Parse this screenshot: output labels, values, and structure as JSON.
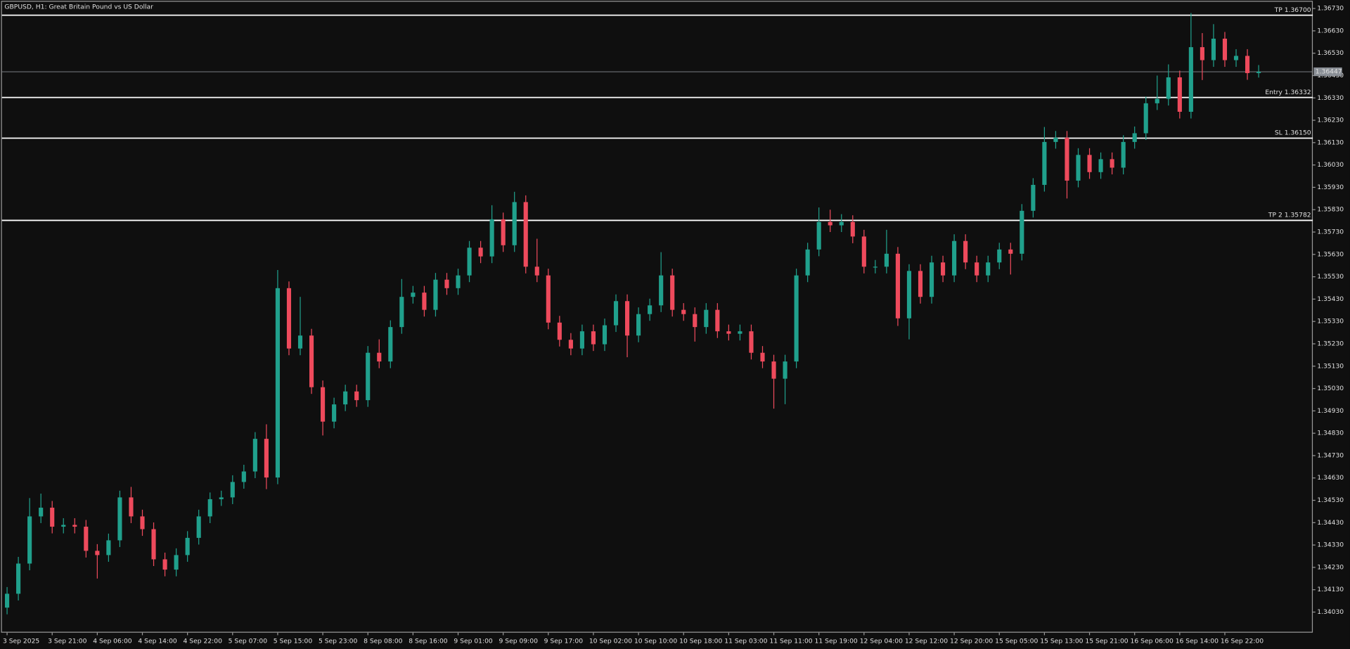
{
  "chart_data": {
    "type": "candlestick",
    "title": "GBPUSD, H1:  Great Britain Pound vs US Dollar",
    "categories": [
      "3 Sep 2025",
      null,
      null,
      null,
      "3 Sep 21:00",
      null,
      null,
      null,
      "4 Sep 06:00",
      null,
      null,
      null,
      "4 Sep 14:00",
      null,
      null,
      null,
      "4 Sep 22:00",
      null,
      null,
      null,
      "5 Sep 07:00",
      null,
      null,
      null,
      "5 Sep 15:00",
      null,
      null,
      null,
      "5 Sep 23:00",
      null,
      null,
      null,
      "8 Sep 08:00",
      null,
      null,
      null,
      "8 Sep 16:00",
      null,
      null,
      null,
      "9 Sep 01:00",
      null,
      null,
      null,
      "9 Sep 09:00",
      null,
      null,
      null,
      "9 Sep 17:00",
      null,
      null,
      null,
      "10 Sep 02:00",
      null,
      null,
      null,
      "10 Sep 10:00",
      null,
      null,
      null,
      "10 Sep 18:00",
      null,
      null,
      null,
      "11 Sep 03:00",
      null,
      null,
      null,
      "11 Sep 11:00",
      null,
      null,
      null,
      "11 Sep 19:00",
      null,
      null,
      null,
      "12 Sep 04:00",
      null,
      null,
      null,
      "12 Sep 12:00",
      null,
      null,
      null,
      "12 Sep 20:00",
      null,
      null,
      null,
      "15 Sep 05:00",
      null,
      null,
      null,
      "15 Sep 13:00",
      null,
      null,
      null,
      "15 Sep 21:00",
      null,
      null,
      null,
      "16 Sep 06:00",
      null,
      null,
      null,
      "16 Sep 14:00",
      null,
      null,
      null,
      "16 Sep 22:00",
      null,
      null,
      null
    ],
    "open": [
      1.3405,
      1.34112,
      1.34247,
      1.34458,
      1.34497,
      1.34412,
      1.3442,
      1.34412,
      1.34304,
      1.34285,
      1.34351,
      1.34543,
      1.34458,
      1.34401,
      1.34266,
      1.3422,
      1.34285,
      1.34362,
      1.34458,
      1.34535,
      1.34543,
      1.34612,
      1.34659,
      1.34805,
      1.34632,
      1.35479,
      1.35209,
      1.35267,
      1.35036,
      1.34882,
      1.34959,
      1.35017,
      1.34978,
      1.3519,
      1.35151,
      1.35305,
      1.3544,
      1.35459,
      1.35382,
      1.35517,
      1.35479,
      1.35536,
      1.3566,
      1.35621,
      1.35787,
      1.35671,
      1.35864,
      1.35575,
      1.35536,
      1.35325,
      1.35248,
      1.35209,
      1.35286,
      1.35228,
      1.35313,
      1.35421,
      1.35267,
      1.35363,
      1.35402,
      1.35536,
      1.35382,
      1.35363,
      1.35305,
      1.35382,
      1.35286,
      1.35275,
      1.35286,
      1.3519,
      1.35151,
      1.35074,
      1.35151,
      1.35536,
      1.35652,
      1.35775,
      1.3576,
      1.35775,
      1.3571,
      1.35575,
      1.35575,
      1.35633,
      1.35344,
      1.35556,
      1.3544,
      1.35594,
      1.35536,
      1.3569,
      1.35594,
      1.35536,
      1.35594,
      1.35652,
      1.35633,
      1.35825,
      1.35941,
      1.36133,
      1.36152,
      1.3596,
      1.36075,
      1.35998,
      1.36056,
      1.36018,
      1.36133,
      1.36172,
      1.36306,
      1.36326,
      1.36422,
      1.36268,
      1.36557,
      1.36499,
      1.36595,
      1.36499,
      1.36518,
      1.36441
    ],
    "high": [
      1.34142,
      1.34277,
      1.3454,
      1.3456,
      1.34527,
      1.3445,
      1.3445,
      1.34442,
      1.34334,
      1.34381,
      1.34573,
      1.3459,
      1.34488,
      1.34431,
      1.34296,
      1.34315,
      1.34392,
      1.34488,
      1.34565,
      1.34573,
      1.34642,
      1.34689,
      1.34835,
      1.3487,
      1.3556,
      1.35509,
      1.3544,
      1.35297,
      1.35066,
      1.34989,
      1.35047,
      1.35047,
      1.3522,
      1.3525,
      1.35335,
      1.3552,
      1.35489,
      1.35489,
      1.35547,
      1.35547,
      1.35566,
      1.3569,
      1.3569,
      1.3585,
      1.35817,
      1.3591,
      1.35894,
      1.357,
      1.35566,
      1.35355,
      1.35278,
      1.35316,
      1.35316,
      1.35343,
      1.35451,
      1.35451,
      1.35393,
      1.35432,
      1.3564,
      1.35566,
      1.35412,
      1.35393,
      1.35412,
      1.35412,
      1.35316,
      1.35316,
      1.35316,
      1.3522,
      1.35181,
      1.35181,
      1.35566,
      1.35682,
      1.3584,
      1.3583,
      1.3581,
      1.35805,
      1.3574,
      1.35605,
      1.3574,
      1.35663,
      1.35586,
      1.35586,
      1.35624,
      1.35624,
      1.3572,
      1.3572,
      1.35624,
      1.35624,
      1.35682,
      1.35682,
      1.35855,
      1.35971,
      1.362,
      1.36182,
      1.36182,
      1.36105,
      1.36105,
      1.36086,
      1.36086,
      1.36163,
      1.36202,
      1.36336,
      1.3643,
      1.3648,
      1.36452,
      1.3671,
      1.3662,
      1.3666,
      1.36625,
      1.36548,
      1.36548,
      1.36477
    ],
    "low": [
      1.3402,
      1.34082,
      1.34217,
      1.34428,
      1.34382,
      1.34382,
      1.34382,
      1.34274,
      1.3418,
      1.34255,
      1.34321,
      1.34428,
      1.34371,
      1.34236,
      1.3419,
      1.3419,
      1.34255,
      1.34332,
      1.34428,
      1.34505,
      1.34513,
      1.34582,
      1.34629,
      1.3458,
      1.34602,
      1.35179,
      1.35179,
      1.35006,
      1.3482,
      1.34852,
      1.34929,
      1.34948,
      1.34948,
      1.35121,
      1.35121,
      1.35275,
      1.3541,
      1.35352,
      1.35352,
      1.35449,
      1.35449,
      1.35506,
      1.35591,
      1.35591,
      1.35641,
      1.35641,
      1.35545,
      1.35506,
      1.35295,
      1.35218,
      1.35179,
      1.35179,
      1.35198,
      1.35198,
      1.35283,
      1.3517,
      1.35237,
      1.35333,
      1.35372,
      1.35352,
      1.35333,
      1.3524,
      1.35275,
      1.35256,
      1.35245,
      1.35245,
      1.3516,
      1.35121,
      1.3494,
      1.3496,
      1.35121,
      1.35506,
      1.35622,
      1.3573,
      1.3573,
      1.3568,
      1.35545,
      1.35545,
      1.35545,
      1.3531,
      1.3525,
      1.3541,
      1.3541,
      1.35506,
      1.35506,
      1.35564,
      1.35506,
      1.35506,
      1.35564,
      1.3554,
      1.35603,
      1.35795,
      1.35911,
      1.36103,
      1.3588,
      1.3593,
      1.35968,
      1.35968,
      1.35988,
      1.35988,
      1.36103,
      1.36142,
      1.36276,
      1.36296,
      1.36238,
      1.36238,
      1.3641,
      1.36469,
      1.36469,
      1.36469,
      1.36411,
      1.36421
    ],
    "close": [
      1.34112,
      1.34247,
      1.34458,
      1.34497,
      1.34412,
      1.3442,
      1.34412,
      1.34304,
      1.34285,
      1.34351,
      1.34543,
      1.34458,
      1.34401,
      1.34266,
      1.3422,
      1.34285,
      1.34362,
      1.34458,
      1.34535,
      1.34543,
      1.34612,
      1.34659,
      1.34805,
      1.34632,
      1.35479,
      1.35209,
      1.35267,
      1.35036,
      1.34882,
      1.34959,
      1.35017,
      1.34978,
      1.3519,
      1.35151,
      1.35305,
      1.3544,
      1.35459,
      1.35382,
      1.35517,
      1.35479,
      1.35536,
      1.3566,
      1.35621,
      1.35787,
      1.35671,
      1.35864,
      1.35575,
      1.35536,
      1.35325,
      1.35248,
      1.35209,
      1.35286,
      1.35228,
      1.35313,
      1.35421,
      1.35267,
      1.35363,
      1.35402,
      1.35536,
      1.35382,
      1.35363,
      1.35305,
      1.35382,
      1.35286,
      1.35275,
      1.35286,
      1.3519,
      1.35151,
      1.35074,
      1.35151,
      1.35536,
      1.35652,
      1.35775,
      1.3576,
      1.35775,
      1.3571,
      1.35575,
      1.35575,
      1.35633,
      1.35344,
      1.35556,
      1.3544,
      1.35594,
      1.35536,
      1.3569,
      1.35594,
      1.35536,
      1.35594,
      1.35652,
      1.35633,
      1.35825,
      1.35941,
      1.36133,
      1.36152,
      1.3596,
      1.36075,
      1.35998,
      1.36056,
      1.36018,
      1.36133,
      1.36172,
      1.36306,
      1.36326,
      1.36422,
      1.36268,
      1.36557,
      1.36499,
      1.36595,
      1.36499,
      1.36518,
      1.36441,
      1.36447
    ],
    "up_color": "#20a08c",
    "down_color": "#ee4a5c",
    "ylim": [
      1.33938,
      1.36768
    ],
    "yticks": [
      {
        "value": 1.3403,
        "label": "1.34030"
      },
      {
        "value": 1.3413,
        "label": "1.34130"
      },
      {
        "value": 1.3423,
        "label": "1.34230"
      },
      {
        "value": 1.3433,
        "label": "1.34330"
      },
      {
        "value": 1.3443,
        "label": "1.34430"
      },
      {
        "value": 1.3453,
        "label": "1.34530"
      },
      {
        "value": 1.3463,
        "label": "1.34630"
      },
      {
        "value": 1.3473,
        "label": "1.34730"
      },
      {
        "value": 1.3483,
        "label": "1.34830"
      },
      {
        "value": 1.3493,
        "label": "1.34930"
      },
      {
        "value": 1.3503,
        "label": "1.35030"
      },
      {
        "value": 1.3513,
        "label": "1.35130"
      },
      {
        "value": 1.3523,
        "label": "1.35230"
      },
      {
        "value": 1.3533,
        "label": "1.35330"
      },
      {
        "value": 1.3543,
        "label": "1.35430"
      },
      {
        "value": 1.3553,
        "label": "1.35530"
      },
      {
        "value": 1.3563,
        "label": "1.35630"
      },
      {
        "value": 1.3573,
        "label": "1.35730"
      },
      {
        "value": 1.3583,
        "label": "1.35830"
      },
      {
        "value": 1.3593,
        "label": "1.35930"
      },
      {
        "value": 1.3603,
        "label": "1.36030"
      },
      {
        "value": 1.3613,
        "label": "1.36130"
      },
      {
        "value": 1.3623,
        "label": "1.36230"
      },
      {
        "value": 1.3633,
        "label": "1.36330"
      },
      {
        "value": 1.3643,
        "label": "1.36430"
      },
      {
        "value": 1.3653,
        "label": "1.36530"
      },
      {
        "value": 1.3663,
        "label": "1.36630"
      },
      {
        "value": 1.3673,
        "label": "1.36730"
      }
    ],
    "levels": [
      {
        "value": 1.367,
        "label": "TP 1.36700"
      },
      {
        "value": 1.36332,
        "label": "Entry 1.36332"
      },
      {
        "value": 1.3615,
        "label": "SL 1.36150"
      },
      {
        "value": 1.35782,
        "label": "TP 2 1.35782"
      }
    ],
    "level_color": "#ffffff",
    "price_line": {
      "value": 1.36447,
      "label": "1.36447",
      "color": "#8a8f96"
    }
  }
}
